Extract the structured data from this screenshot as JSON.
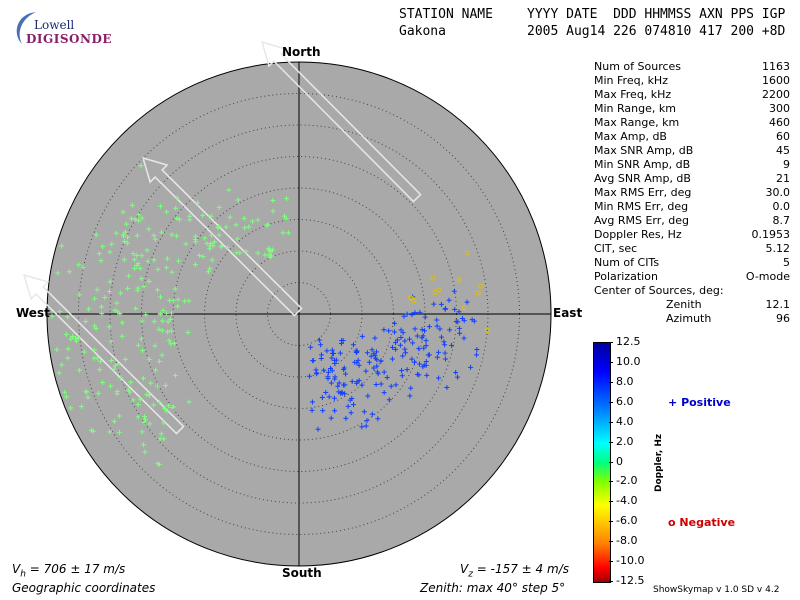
{
  "logo": {
    "line1": "Lowell",
    "line2": "DIGISONDE"
  },
  "header": {
    "station_label": "STATION NAME",
    "station": "Gakona",
    "cols_label": "YYYY DATE  DDD HHMMSS AXN PPS IGP",
    "cols_values": "2005 Aug14 226 074810 417 200 +8D"
  },
  "params": [
    {
      "label": "Num of Sources",
      "value": "1163"
    },
    {
      "label": "Min Freq, kHz",
      "value": "1600"
    },
    {
      "label": "Max Freq, kHz",
      "value": "2200"
    },
    {
      "label": "Min Range, km",
      "value": "300"
    },
    {
      "label": "Max Range, km",
      "value": "460"
    },
    {
      "label": "Max Amp, dB",
      "value": "60"
    },
    {
      "label": "Max SNR Amp, dB",
      "value": "45"
    },
    {
      "label": "Min SNR Amp, dB",
      "value": "9"
    },
    {
      "label": "Avg SNR Amp, dB",
      "value": "21"
    },
    {
      "label": "Max RMS Err, deg",
      "value": "30.0"
    },
    {
      "label": "Min RMS Err, deg",
      "value": "0.0"
    },
    {
      "label": "Avg RMS Err, deg",
      "value": "8.7"
    },
    {
      "label": "Doppler Res, Hz",
      "value": "0.1953"
    },
    {
      "label": "CIT, sec",
      "value": "5.12"
    },
    {
      "label": "Num of CITs",
      "value": "5"
    },
    {
      "label": "Polarization",
      "value": "O-mode"
    }
  ],
  "center": {
    "title": "Center of Sources, deg:",
    "zenith_label": "Zenith",
    "zenith_value": "12.1",
    "azimuth_label": "Azimuth",
    "azimuth_value": "96"
  },
  "compass": {
    "north": "North",
    "south": "South",
    "east": "East",
    "west": "West"
  },
  "footer": {
    "vh_symbol": "V",
    "vh_sub": "h",
    "vh_text": " = 706 ± 17 m/s",
    "vz_symbol": "V",
    "vz_sub": "z",
    "vz_text": " = -157 ± 4 m/s",
    "coords": "Geographic coordinates",
    "zenith_info": "Zenith: max 40°  step 5°",
    "version": "ShowSkymap v 1.0   SD v 4.2"
  },
  "colorbar": {
    "title": "Doppler, Hz",
    "ticks": [
      "12.5",
      "10.0",
      "8.0",
      "6.0",
      "4.0",
      "2.0",
      "0",
      "-2.0",
      "-4.0",
      "-6.0",
      "-8.0",
      "-10.0",
      "-12.5"
    ]
  },
  "legend": {
    "positive_symbol": "+",
    "positive_label": "Positive",
    "positive_color": "#0000cc",
    "negative_symbol": "o",
    "negative_label": "Negative",
    "negative_color": "#cc0000"
  },
  "colors": {
    "disk": "#a9a9a9",
    "green": "#7fff7f",
    "blue": "#1040ff"
  },
  "chart_data": {
    "type": "scatter",
    "title": "",
    "coordinate_system": "polar skymap (zenith angle vs azimuth)",
    "zenith_max_deg": 40,
    "zenith_step_deg": 5,
    "zenith_rings_deg": [
      5,
      10,
      15,
      20,
      25,
      30,
      35,
      40
    ],
    "series": [
      {
        "name": "Positive",
        "marker": "+",
        "doppler_hz_approx": 2,
        "cluster": "western half, drifting west",
        "points": [
          {
            "zenith": 30,
            "az": 300
          },
          {
            "zenith": 28,
            "az": 290
          },
          {
            "zenith": 25,
            "az": 280
          },
          {
            "zenith": 33,
            "az": 260
          },
          {
            "zenith": 36,
            "az": 250
          },
          {
            "zenith": 22,
            "az": 270
          },
          {
            "zenith": 20,
            "az": 305
          },
          {
            "zenith": 18,
            "az": 320
          },
          {
            "zenith": 15,
            "az": 340
          },
          {
            "zenith": 30,
            "az": 235
          },
          {
            "zenith": 26,
            "az": 245
          },
          {
            "zenith": 35,
            "az": 275
          }
        ]
      },
      {
        "name": "Positive",
        "marker": "+",
        "doppler_hz_approx": 8,
        "cluster": "south-east quadrant",
        "points": [
          {
            "zenith": 18,
            "az": 110
          },
          {
            "zenith": 15,
            "az": 120
          },
          {
            "zenith": 12,
            "az": 130
          },
          {
            "zenith": 20,
            "az": 100
          },
          {
            "zenith": 22,
            "az": 95
          },
          {
            "zenith": 10,
            "az": 150
          },
          {
            "zenith": 14,
            "az": 160
          },
          {
            "zenith": 17,
            "az": 140
          },
          {
            "zenith": 24,
            "az": 105
          }
        ]
      },
      {
        "name": "Negative",
        "marker": "o",
        "doppler_hz_approx": -4,
        "cluster": "east",
        "points": [
          {
            "zenith": 22,
            "az": 75
          },
          {
            "zenith": 26,
            "az": 78
          },
          {
            "zenith": 18,
            "az": 82
          },
          {
            "zenith": 30,
            "az": 95
          }
        ]
      }
    ],
    "annotations": [
      "Velocity arrows pointing NW",
      "Vh = 706 ± 17 m/s",
      "Vz = -157 ± 4 m/s"
    ]
  }
}
